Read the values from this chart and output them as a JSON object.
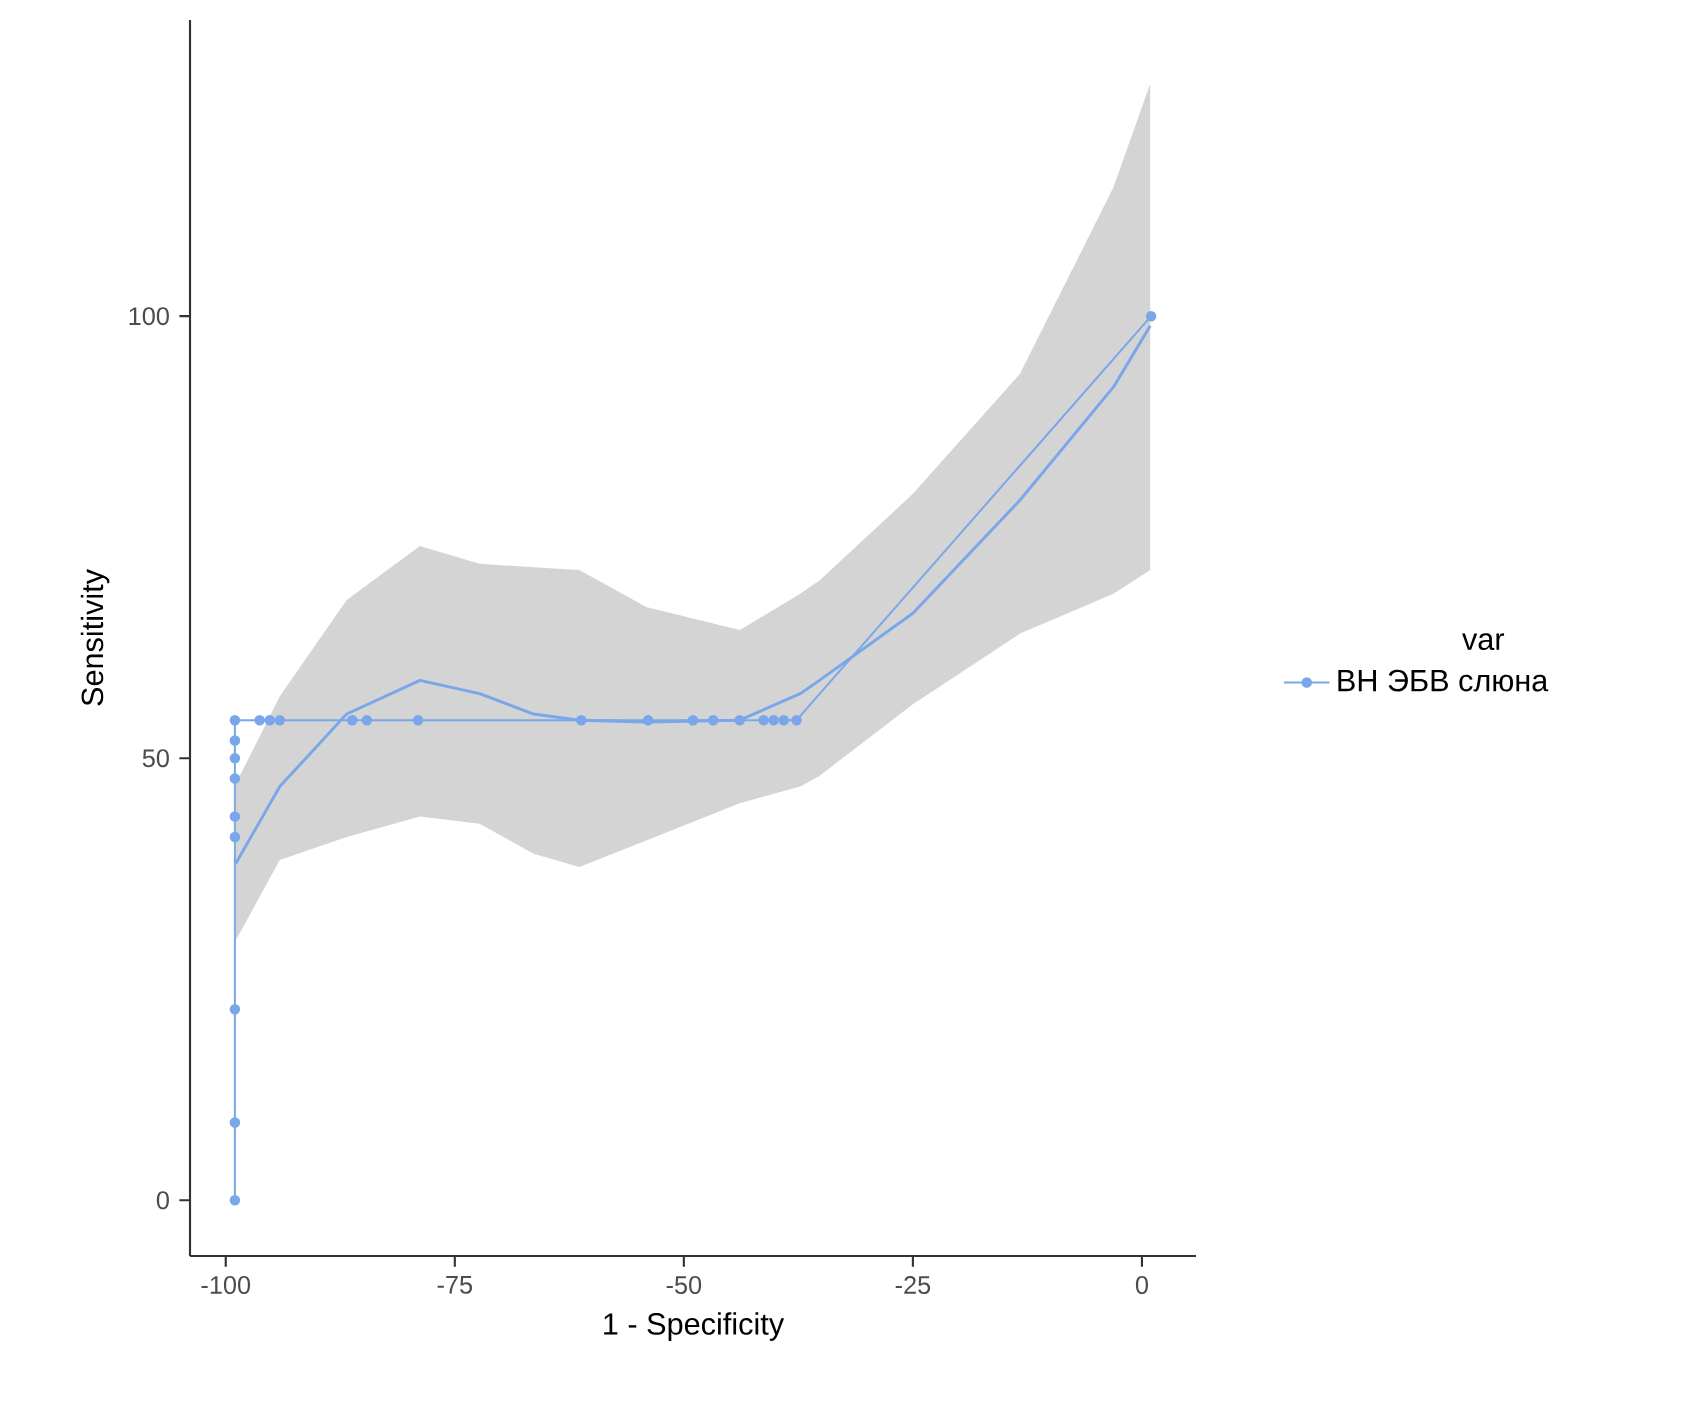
{
  "chart_data": {
    "type": "line",
    "xlabel": "1 - Specificity",
    "ylabel": "Sensitivity",
    "legend_title": "var",
    "legend": "right",
    "xlim": [
      -103.9,
      5.9
    ],
    "ylim": [
      -6.3,
      133.5
    ],
    "xticks": [
      -100,
      -75,
      -50,
      -25,
      0
    ],
    "yticks": [
      0,
      50,
      100
    ],
    "series": [
      {
        "name": "ВН ЭБВ слюна",
        "marker": "circle",
        "color": "#7aa6ea",
        "x": [
          -99,
          -99,
          -99,
          -99,
          -99,
          -99,
          -99,
          -99,
          -99,
          -96.3,
          -95.2,
          -94.1,
          -86.2,
          -84.6,
          -79.0,
          -61.2,
          -53.9,
          -49.0,
          -46.8,
          -43.9,
          -41.3,
          -40.2,
          -39.1,
          -37.7,
          1
        ],
        "values": [
          0,
          8.8,
          21.6,
          41.1,
          43.4,
          47.7,
          50.0,
          52.0,
          54.3,
          54.3,
          54.3,
          54.3,
          54.3,
          54.3,
          54.3,
          54.3,
          54.3,
          54.3,
          54.3,
          54.3,
          54.3,
          54.3,
          54.3,
          54.3,
          100
        ]
      },
      {
        "marker": "none",
        "color": "#7aa6ea",
        "x": [
          -98.9,
          -94.1,
          -86.8,
          -78.8,
          -72.3,
          -66.4,
          -61.4,
          -54.1,
          -43.9,
          -37.3,
          -35.2,
          -25.0,
          -13.3,
          -3.1,
          0.9
        ],
        "values": [
          38.1,
          46.8,
          55.0,
          58.8,
          57.3,
          55.0,
          54.3,
          54.1,
          54.3,
          57.3,
          58.8,
          66.4,
          79.2,
          92.0,
          98.9
        ],
        "lower": [
          29.4,
          38.5,
          41.1,
          43.4,
          42.6,
          39.2,
          37.7,
          40.7,
          44.9,
          46.8,
          48.0,
          56.1,
          64.1,
          68.6,
          71.3
        ],
        "upper": [
          47.1,
          57.0,
          67.9,
          74.0,
          72.0,
          71.6,
          71.3,
          67.1,
          64.5,
          68.6,
          70.1,
          79.9,
          93.5,
          114.6,
          126.3
        ]
      }
    ]
  }
}
